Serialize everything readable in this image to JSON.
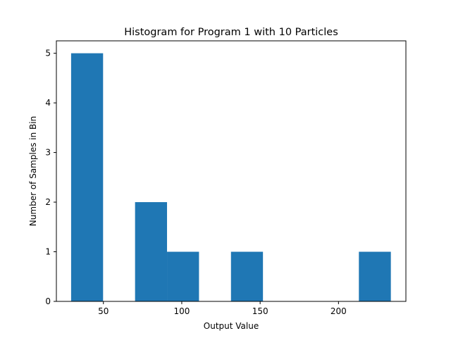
{
  "chart_data": {
    "type": "bar",
    "title": "Histogram for Program 1 with 10 Particles",
    "xlabel": "Output Value",
    "ylabel": "Number of Samples in Bin",
    "xlim": [
      20,
      243
    ],
    "ylim": [
      0,
      5.25
    ],
    "xticks": [
      50,
      100,
      150,
      200
    ],
    "yticks": [
      0,
      1,
      2,
      3,
      4,
      5
    ],
    "bin_edges": [
      29.4,
      49.8,
      70.2,
      90.6,
      111.0,
      131.4,
      151.8,
      172.2,
      192.6,
      213.0,
      233.4
    ],
    "counts": [
      5,
      0,
      2,
      1,
      0,
      1,
      0,
      0,
      0,
      1
    ],
    "bar_color": "#1f77b4",
    "grid": false,
    "legend": "none"
  }
}
